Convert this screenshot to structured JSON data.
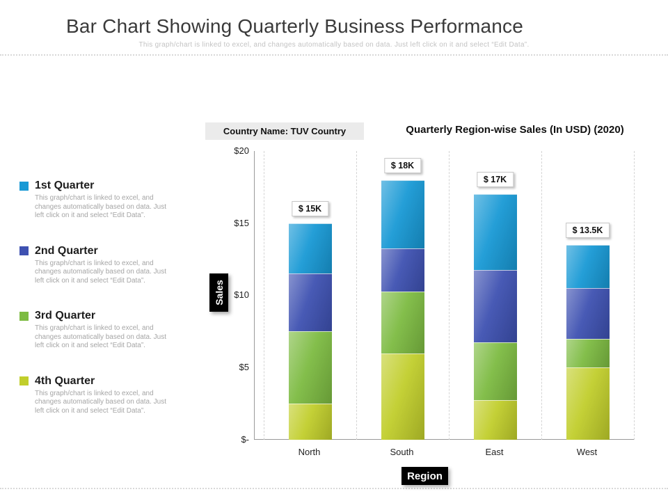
{
  "slide": {
    "title": "Bar Chart Showing Quarterly Business Performance",
    "subtitle": "This graph/chart is linked to excel, and changes automatically  based on data. Just left click on it and select “Edit Data”."
  },
  "legend": {
    "items": [
      {
        "label": "1st Quarter",
        "color": "#1899D5",
        "desc": "This graph/chart is linked to excel, and changes automatically  based on data. Just left click on it and select “Edit Data”."
      },
      {
        "label": "2nd Quarter",
        "color": "#3E51B1",
        "desc": "This graph/chart is linked to excel, and changes automatically  based on data. Just left click on it and select “Edit Data”."
      },
      {
        "label": "3rd Quarter",
        "color": "#7DBB42",
        "desc": "This graph/chart is linked to excel, and changes automatically  based on data. Just left click on it and select “Edit Data”."
      },
      {
        "label": "4th Quarter",
        "color": "#C1CE2C",
        "desc": "This graph/chart is linked to excel, and changes automatically  based on data. Just left click on it and select “Edit Data”."
      }
    ]
  },
  "chart": {
    "country_label": "Country Name: TUV Country",
    "title": "Quarterly Region-wise Sales (In USD) (2020)",
    "y_axis_label": "Sales",
    "x_axis_label": "Region",
    "y_ticks": [
      "$20",
      "$15",
      "$10",
      "$5",
      "$-"
    ]
  },
  "chart_data": {
    "type": "bar",
    "stacked": true,
    "title": "Quarterly Region-wise Sales (In USD) (2020)",
    "xlabel": "Region",
    "ylabel": "Sales",
    "ylim": [
      0,
      20
    ],
    "grid": "dashed-vertical",
    "legend_position": "left",
    "categories": [
      "North",
      "South",
      "East",
      "West"
    ],
    "series": [
      {
        "name": "4th Quarter",
        "color": "#C1CE2C",
        "values": [
          2.5,
          6,
          2.75,
          5
        ]
      },
      {
        "name": "3rd Quarter",
        "color": "#7DBB42",
        "values": [
          5,
          4.25,
          4,
          2
        ]
      },
      {
        "name": "2nd Quarter",
        "color": "#3E51B1",
        "values": [
          4,
          3,
          5,
          3.5
        ]
      },
      {
        "name": "1st Quarter",
        "color": "#1899D5",
        "values": [
          3.5,
          4.75,
          5.25,
          3
        ]
      }
    ],
    "stack_order": "bottom-to-top",
    "totals": [
      15,
      18,
      17,
      13.5
    ],
    "total_labels": [
      "$ 15K",
      "$ 18K",
      "$ 17K",
      "$ 13.5K"
    ]
  }
}
